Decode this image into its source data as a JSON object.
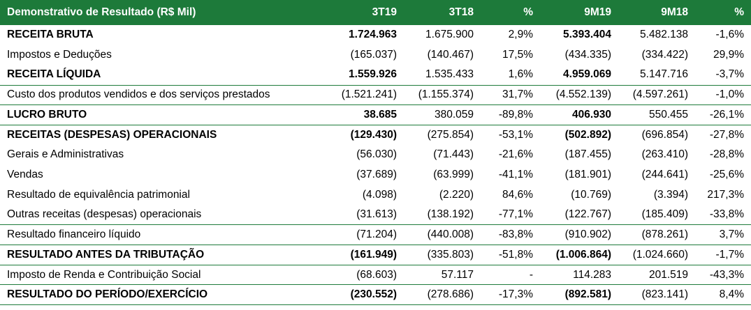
{
  "table": {
    "header": [
      "Demonstrativo de Resultado (R$ Mil)",
      "3T19",
      "3T18",
      "%",
      "9M19",
      "9M18",
      "%"
    ],
    "rows": [
      [
        "RECEITA BRUTA",
        "1.724.963",
        "1.675.900",
        "2,9%",
        "5.393.404",
        "5.482.138",
        "-1,6%"
      ],
      [
        "Impostos e Deduções",
        "(165.037)",
        "(140.467)",
        "17,5%",
        "(434.335)",
        "(334.422)",
        "29,9%"
      ],
      [
        "RECEITA LÍQUIDA",
        "1.559.926",
        "1.535.433",
        "1,6%",
        "4.959.069",
        "5.147.716",
        "-3,7%"
      ],
      [
        "Custo dos produtos vendidos e dos serviços prestados",
        "(1.521.241)",
        "(1.155.374)",
        "31,7%",
        "(4.552.139)",
        "(4.597.261)",
        "-1,0%"
      ],
      [
        "LUCRO BRUTO",
        "38.685",
        "380.059",
        "-89,8%",
        "406.930",
        "550.455",
        "-26,1%"
      ],
      [
        "RECEITAS (DESPESAS) OPERACIONAIS",
        "(129.430)",
        "(275.854)",
        "-53,1%",
        "(502.892)",
        "(696.854)",
        "-27,8%"
      ],
      [
        "Gerais e Administrativas",
        "(56.030)",
        "(71.443)",
        "-21,6%",
        "(187.455)",
        "(263.410)",
        "-28,8%"
      ],
      [
        "Vendas",
        "(37.689)",
        "(63.999)",
        "-41,1%",
        "(181.901)",
        "(244.641)",
        "-25,6%"
      ],
      [
        "Resultado de equivalência patrimonial",
        "(4.098)",
        "(2.220)",
        "84,6%",
        "(10.769)",
        "(3.394)",
        "217,3%"
      ],
      [
        "Outras receitas (despesas) operacionais",
        "(31.613)",
        "(138.192)",
        "-77,1%",
        "(122.767)",
        "(185.409)",
        "-33,8%"
      ],
      [
        "Resultado financeiro líquido",
        "(71.204)",
        "(440.008)",
        "-83,8%",
        "(910.902)",
        "(878.261)",
        "3,7%"
      ],
      [
        "RESULTADO ANTES DA TRIBUTAÇÃO",
        "(161.949)",
        "(335.803)",
        "-51,8%",
        "(1.006.864)",
        "(1.024.660)",
        "-1,7%"
      ],
      [
        "Imposto de Renda e Contribuição Social",
        "(68.603)",
        "57.117",
        "-",
        "114.283",
        "201.519",
        "-43,3%"
      ],
      [
        "RESULTADO DO PERÍODO/EXERCÍCIO",
        "(230.552)",
        "(278.686)",
        "-17,3%",
        "(892.581)",
        "(823.141)",
        "8,4%"
      ]
    ]
  }
}
